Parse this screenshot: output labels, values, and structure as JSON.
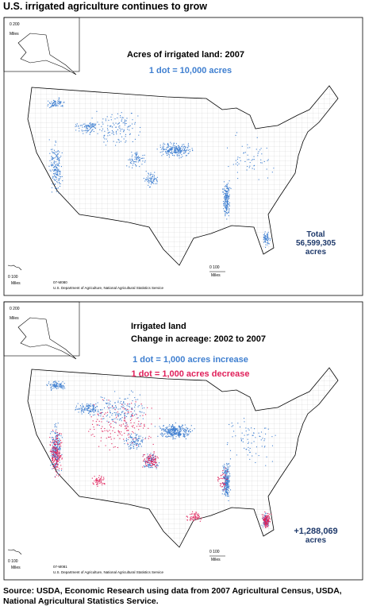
{
  "title": "U.S. irrigated agriculture continues to grow",
  "maps": [
    {
      "heading": [
        "Acres of irrigated land:  2007"
      ],
      "legend": [
        {
          "text": "1 dot  = 10,000 acres",
          "color": "#3f7fd0"
        }
      ],
      "total": [
        "Total",
        "56,599,305",
        "acres"
      ],
      "inset_scale": [
        "0  200",
        "Miles"
      ],
      "hawaii_scale": [
        "0    100",
        "Miles"
      ],
      "main_scale": [
        "0     100",
        "Miles"
      ],
      "map_id": "07-M080",
      "credit": "U.S. Department of Agriculture, National Agricultural Statistics Service"
    },
    {
      "heading": [
        "Irrigated land",
        "Change in acreage: 2002 to 2007"
      ],
      "legend": [
        {
          "text": "1 dot = 1,000 acres increase",
          "color": "#3f7fd0"
        },
        {
          "text": "1 dot = 1,000 acres decrease",
          "color": "#e0205a"
        }
      ],
      "total": [
        "+1,288,069",
        "acres"
      ],
      "inset_scale": [
        "0  200",
        "Miles"
      ],
      "hawaii_scale": [
        "0    100",
        "Miles"
      ],
      "main_scale": [
        "0     100",
        "Miles"
      ],
      "map_id": "07-M081",
      "credit": "U.S. Department of Agriculture, National Agricultural Statistics Service"
    }
  ],
  "source": "Source:  USDA, Economic Research using data from 2007 Agricultural Census, USDA, National Agricultural Statistics Service."
}
